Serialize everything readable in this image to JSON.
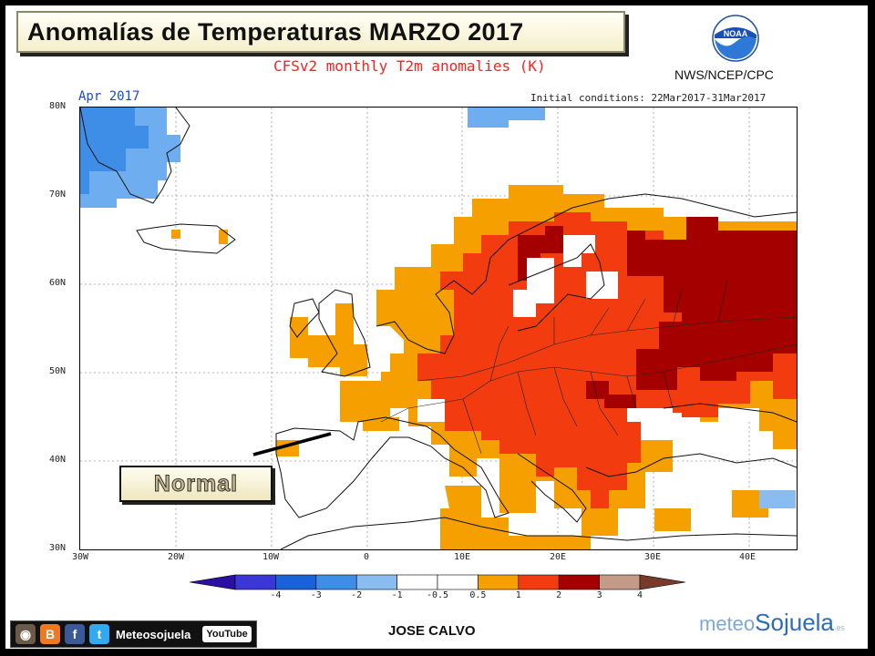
{
  "header": {
    "title": "Anomalías de Temperaturas MARZO 2017",
    "subtitle": "CFSv2 monthly T2m anomalies (K)",
    "agency": "NWS/NCEP/CPC",
    "logo_text": "NOAA"
  },
  "map": {
    "period_label": "Apr 2017",
    "initial_conditions": "Initial conditions: 22Mar2017-31Mar2017",
    "lat_labels": [
      "80N",
      "70N",
      "60N",
      "50N",
      "40N",
      "30N"
    ],
    "lon_labels": [
      "30W",
      "20W",
      "10W",
      "0",
      "10E",
      "20E",
      "30E",
      "40E"
    ],
    "annotation": "Normal"
  },
  "legend": {
    "colors": [
      "#2a0fa0",
      "#3b36d6",
      "#1a62d8",
      "#3e8de6",
      "#89bdf2",
      "#ffffff",
      "#ffffff",
      "#f5a000",
      "#f23c10",
      "#a40000",
      "#c49a88",
      "#7a3a2a"
    ],
    "labels": [
      "-4",
      "-3",
      "-2",
      "-1",
      "-0.5",
      "0.5",
      "1",
      "2",
      "3",
      "4"
    ]
  },
  "footer": {
    "social_name": "Meteosojuela",
    "youtube_label": "YouTube",
    "author": "JOSE CALVO",
    "brand_part1": "meteo",
    "brand_part2": "Sojuela",
    "brand_suffix": ".es"
  }
}
